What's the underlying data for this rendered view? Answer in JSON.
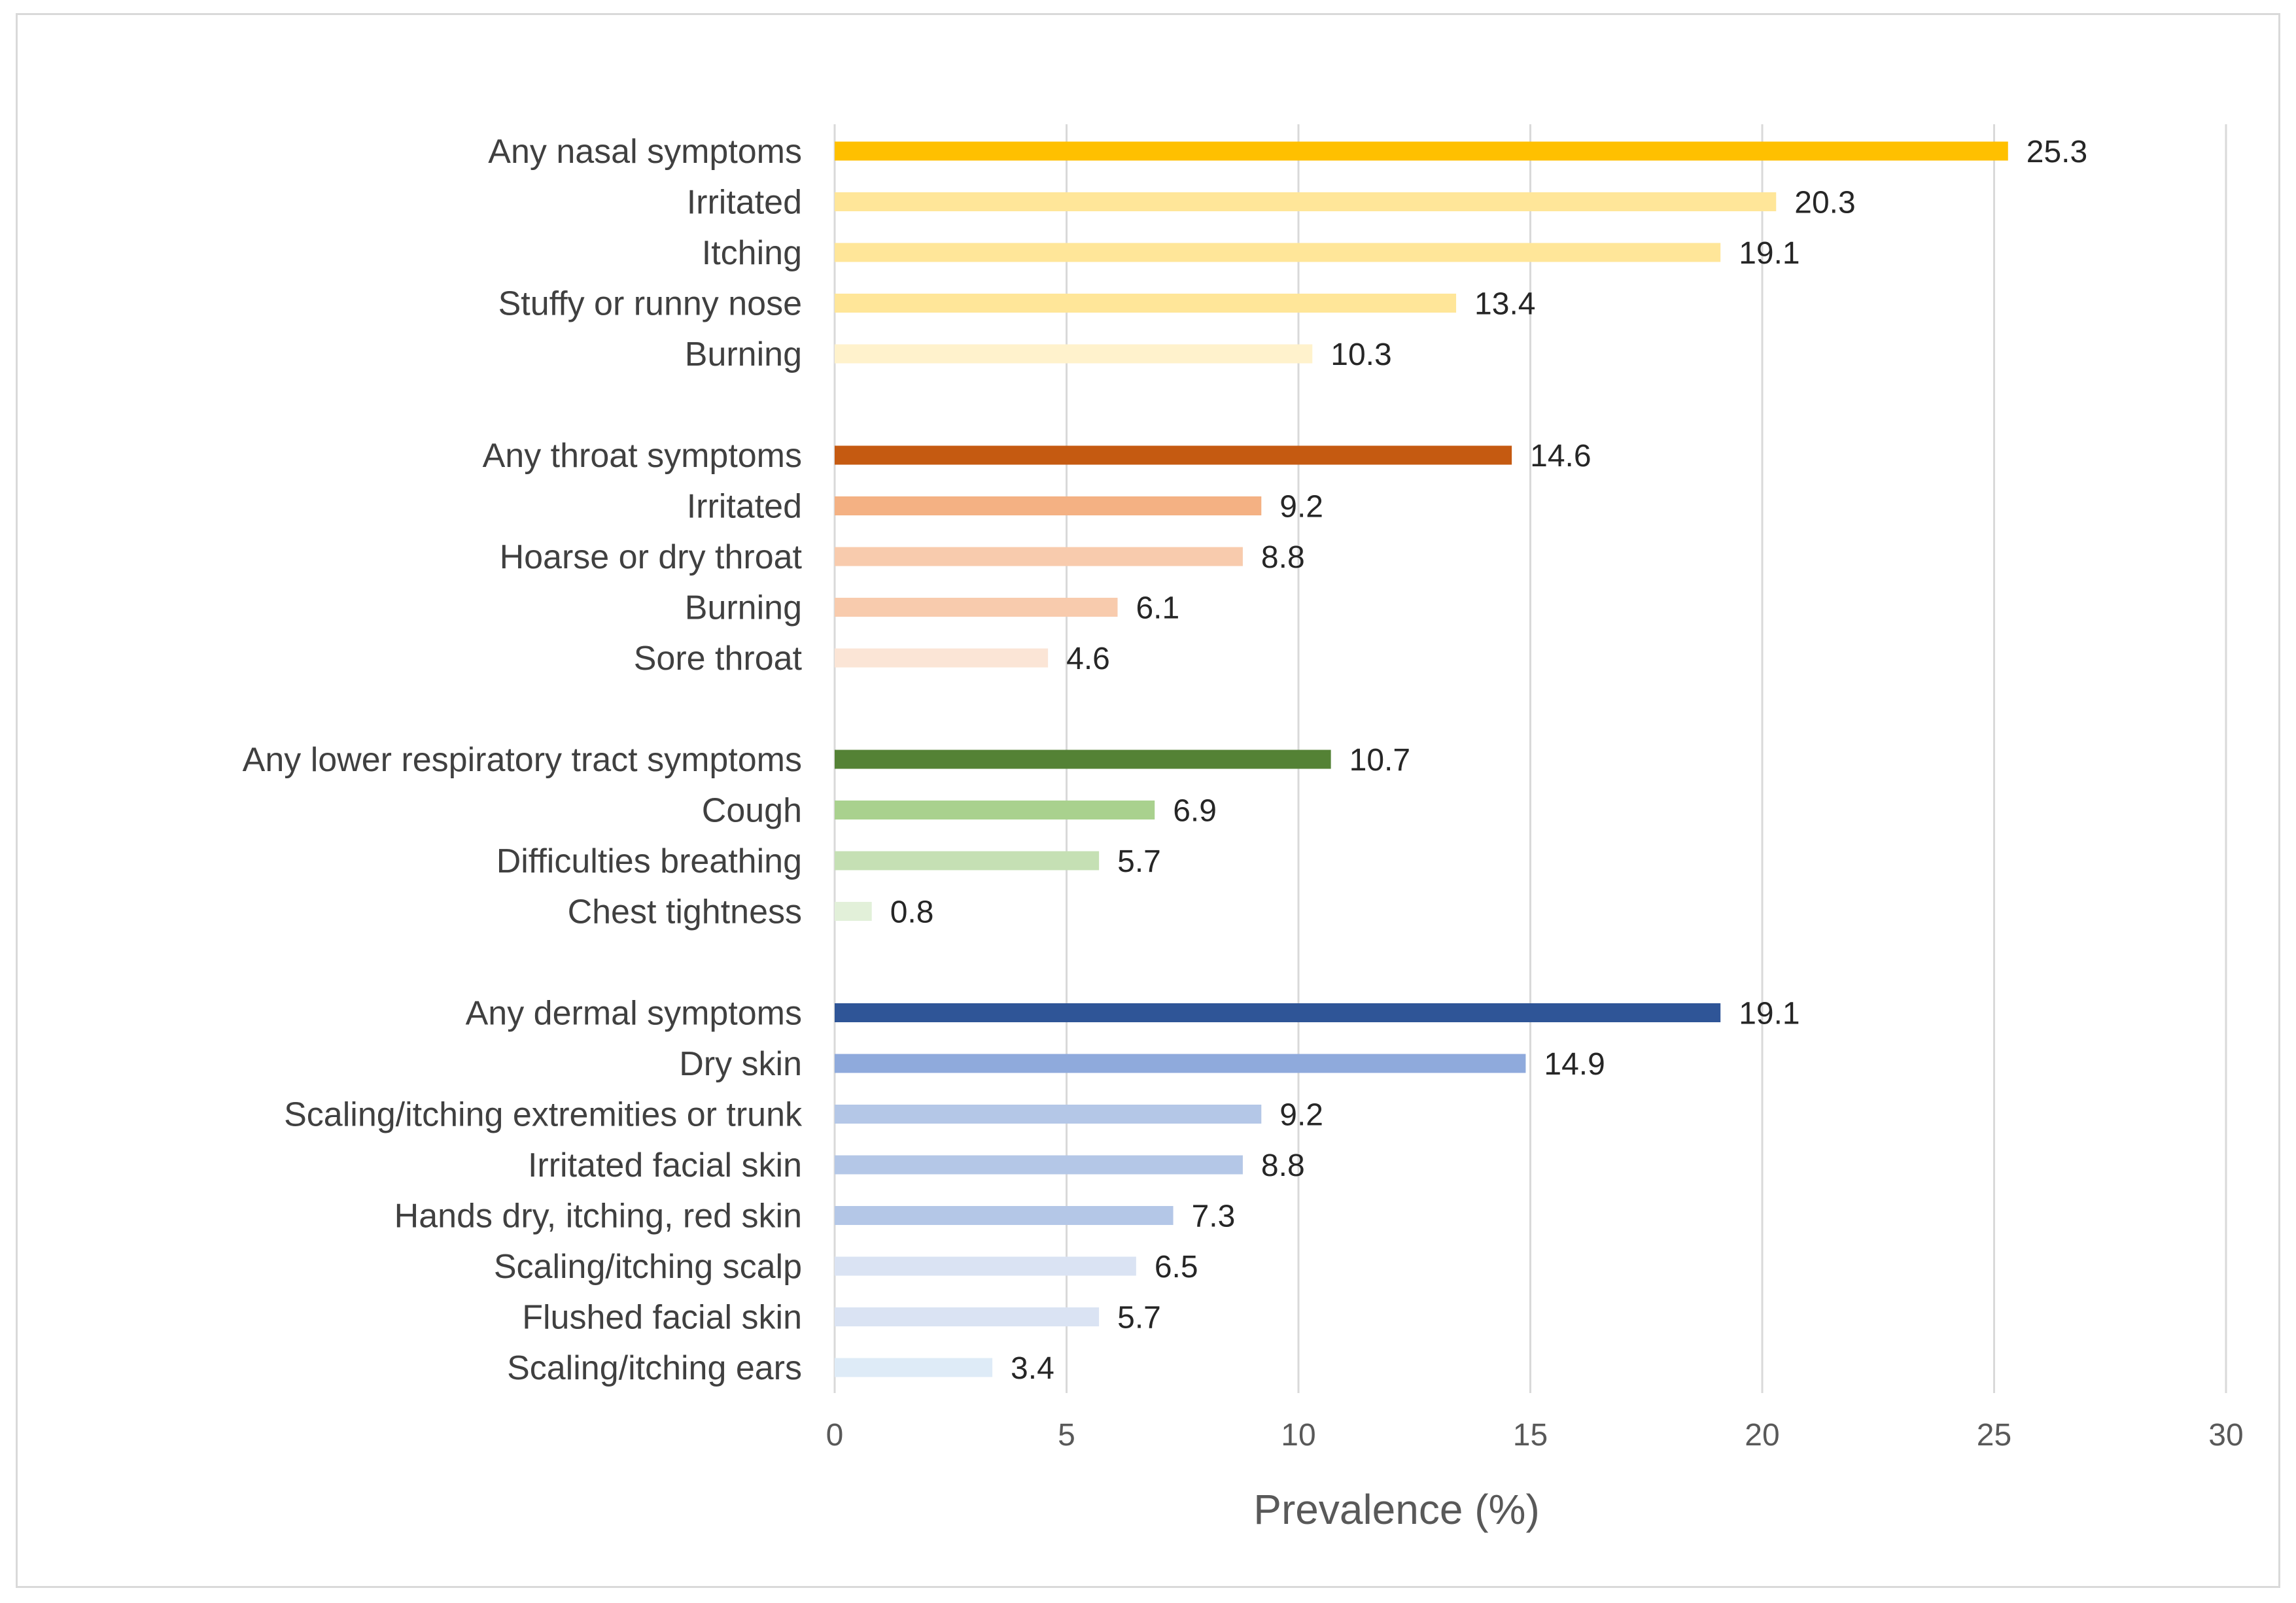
{
  "chart_data": {
    "type": "bar",
    "orientation": "horizontal",
    "xlabel": "Prevalence (%)",
    "ylabel": "",
    "xlim": [
      0,
      30
    ],
    "x_ticks": [
      0,
      5,
      10,
      15,
      20,
      25,
      30
    ],
    "grid": "vertical",
    "legend": "none",
    "groups": [
      {
        "id": "nasal",
        "bars": [
          {
            "label": "Any nasal symptoms",
            "value": 25.3,
            "color": "#FFC000"
          },
          {
            "label": "Irritated",
            "value": 20.3,
            "color": "#FFE699"
          },
          {
            "label": "Itching",
            "value": 19.1,
            "color": "#FFE699"
          },
          {
            "label": "Stuffy or runny nose",
            "value": 13.4,
            "color": "#FFE699"
          },
          {
            "label": "Burning",
            "value": 10.3,
            "color": "#FFF2CC"
          }
        ]
      },
      {
        "id": "throat",
        "bars": [
          {
            "label": "Any throat symptoms",
            "value": 14.6,
            "color": "#C55A11"
          },
          {
            "label": "Irritated",
            "value": 9.2,
            "color": "#F4B183"
          },
          {
            "label": "Hoarse or dry throat",
            "value": 8.8,
            "color": "#F8CBAD"
          },
          {
            "label": "Burning",
            "value": 6.1,
            "color": "#F8CBAD"
          },
          {
            "label": "Sore throat",
            "value": 4.6,
            "color": "#FBE5D6"
          }
        ]
      },
      {
        "id": "lower-respiratory",
        "bars": [
          {
            "label": "Any lower respiratory tract symptoms",
            "value": 10.7,
            "color": "#548235"
          },
          {
            "label": "Cough",
            "value": 6.9,
            "color": "#A9D18E"
          },
          {
            "label": "Difficulties breathing",
            "value": 5.7,
            "color": "#C5E0B4"
          },
          {
            "label": "Chest tightness",
            "value": 0.8,
            "color": "#E2F0D9"
          }
        ]
      },
      {
        "id": "dermal",
        "bars": [
          {
            "label": "Any dermal symptoms",
            "value": 19.1,
            "color": "#2F5597"
          },
          {
            "label": "Dry skin",
            "value": 14.9,
            "color": "#8FAADC"
          },
          {
            "label": "Scaling/itching extremities or trunk",
            "value": 9.2,
            "color": "#B4C7E7"
          },
          {
            "label": "Irritated facial skin",
            "value": 8.8,
            "color": "#B4C7E7"
          },
          {
            "label": "Hands dry, itching, red skin",
            "value": 7.3,
            "color": "#B4C7E7"
          },
          {
            "label": "Scaling/itching scalp",
            "value": 6.5,
            "color": "#DAE3F3"
          },
          {
            "label": "Flushed facial skin",
            "value": 5.7,
            "color": "#DAE3F3"
          },
          {
            "label": "Scaling/itching ears",
            "value": 3.4,
            "color": "#DEEBF7"
          }
        ]
      }
    ]
  }
}
